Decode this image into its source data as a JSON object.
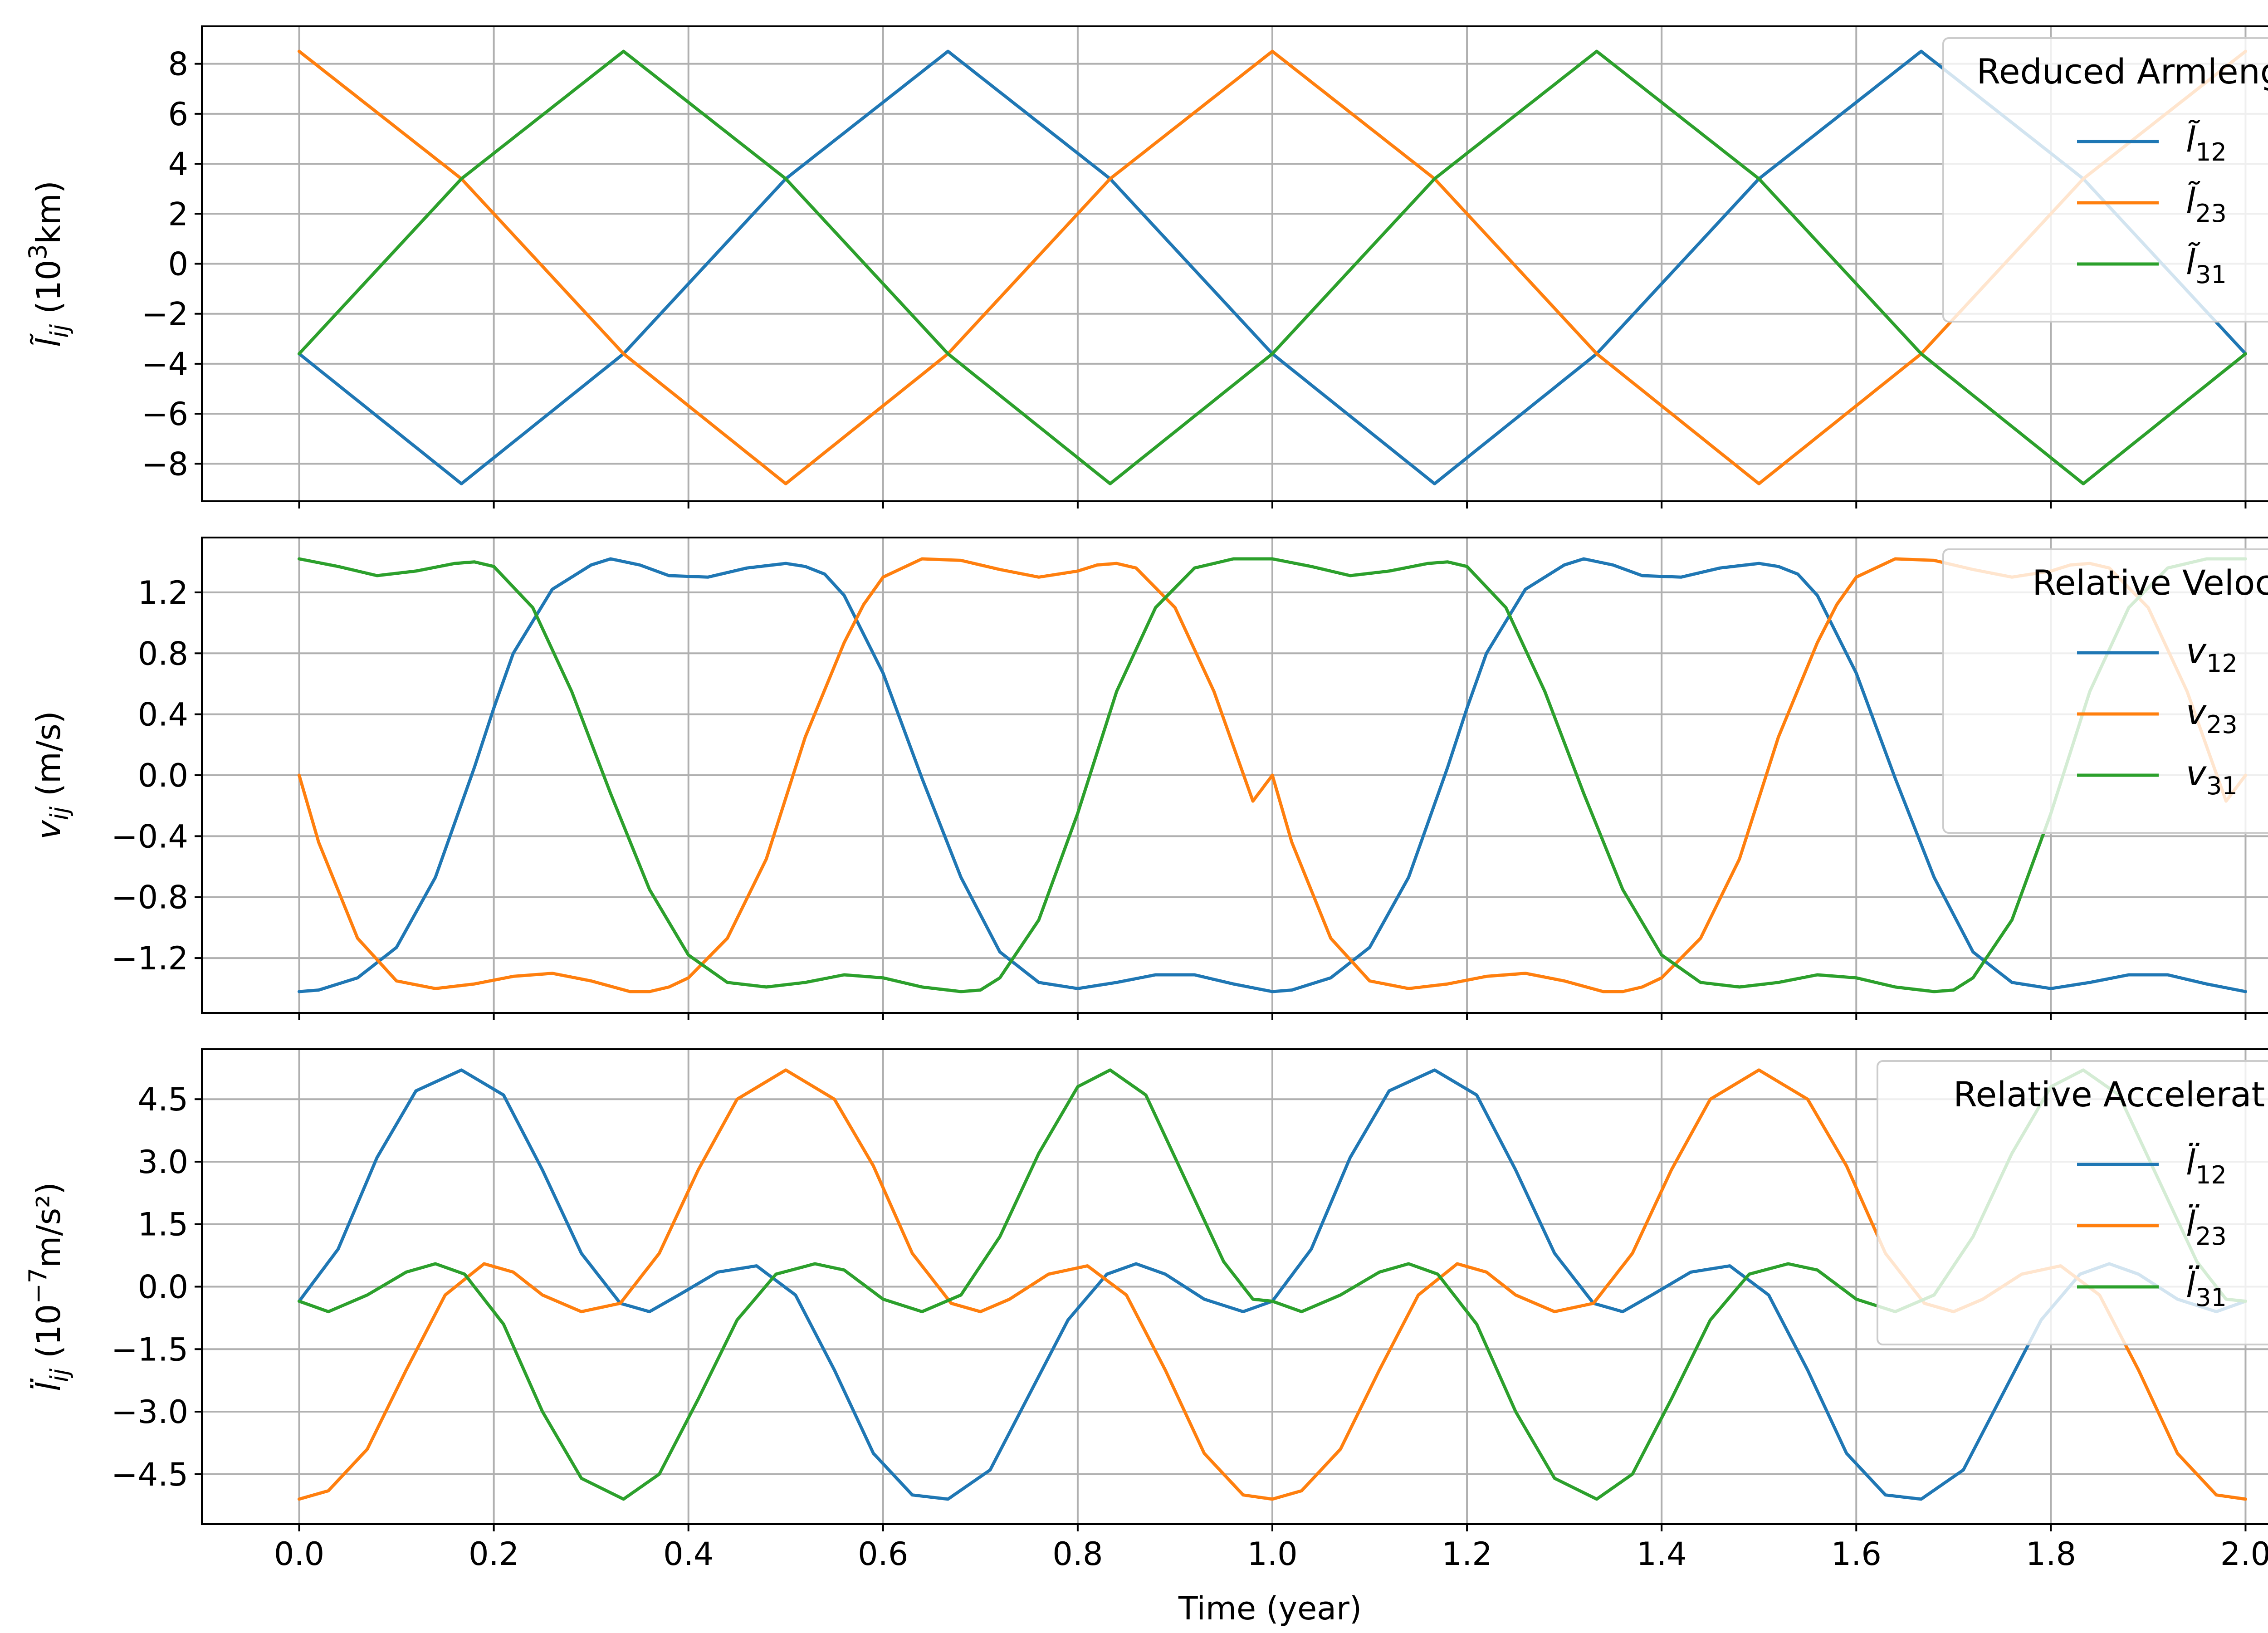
{
  "figure": {
    "xlabel": "Time (year)",
    "xticks": [
      0.0,
      0.2,
      0.4,
      0.6,
      0.8,
      1.0,
      1.2,
      1.4,
      1.6,
      1.8,
      2.0
    ],
    "xtick_labels": [
      "0.0",
      "0.2",
      "0.4",
      "0.6",
      "0.8",
      "1.0",
      "1.2",
      "1.4",
      "1.6",
      "1.8",
      "2.0"
    ]
  },
  "colors": {
    "c12": "#1f77b4",
    "c23": "#ff7f0e",
    "c31": "#2ca02c",
    "grid": "#b0b0b0"
  },
  "chart_data": [
    {
      "type": "line",
      "id": "armlength",
      "ylabel": {
        "base": "l̃",
        "sub": "ij",
        "rest": " (10",
        "sup": "3",
        "tail": "km)"
      },
      "legend_title": "Reduced Armlength",
      "legend_placement": "top-right",
      "grid": true,
      "xlim": [
        -0.1,
        2.1
      ],
      "ylim": [
        -9.5,
        9.5
      ],
      "yticks": [
        8,
        6,
        4,
        2,
        0,
        -2,
        -4,
        -6,
        -8
      ],
      "ytick_labels": [
        "8",
        "6",
        "4",
        "2",
        "0",
        "−2",
        "−4",
        "−6",
        "−8"
      ],
      "x_range": [
        0,
        2
      ],
      "series": [
        {
          "name": "l̃",
          "sub": "12",
          "color": "#1f77b4",
          "x": [
            0.0,
            0.1667,
            0.3333,
            0.5,
            0.6667,
            0.8333,
            1.0,
            1.1667,
            1.3333,
            1.5,
            1.6667,
            1.8333,
            2.0
          ],
          "values": [
            -3.6,
            -8.8,
            -3.6,
            3.4,
            8.5,
            3.4,
            -3.6,
            -8.8,
            -3.6,
            3.4,
            8.5,
            3.4,
            -3.6
          ]
        },
        {
          "name": "l̃",
          "sub": "23",
          "color": "#ff7f0e",
          "x": [
            0.0,
            0.1667,
            0.3333,
            0.5,
            0.6667,
            0.8333,
            1.0,
            1.1667,
            1.3333,
            1.5,
            1.6667,
            1.8333,
            2.0
          ],
          "values": [
            8.5,
            3.4,
            -3.6,
            -8.8,
            -3.6,
            3.4,
            8.5,
            3.4,
            -3.6,
            -8.8,
            -3.6,
            3.4,
            8.5
          ]
        },
        {
          "name": "l̃",
          "sub": "31",
          "color": "#2ca02c",
          "x": [
            0.0,
            0.1667,
            0.3333,
            0.5,
            0.6667,
            0.8333,
            1.0,
            1.1667,
            1.3333,
            1.5,
            1.6667,
            1.8333,
            2.0
          ],
          "values": [
            -3.6,
            3.4,
            8.5,
            3.4,
            -3.6,
            -8.8,
            -3.6,
            3.4,
            8.5,
            3.4,
            -3.6,
            -8.8,
            -3.6
          ]
        }
      ]
    },
    {
      "type": "line",
      "id": "velocity",
      "ylabel": {
        "base": "v",
        "sub": "ij",
        "rest": " (m/s)",
        "sup": "",
        "tail": ""
      },
      "legend_title": "Relative Velocity",
      "legend_placement": "top-right",
      "grid": true,
      "xlim": [
        -0.1,
        2.1
      ],
      "ylim": [
        -1.56,
        1.56
      ],
      "yticks": [
        1.2,
        0.8,
        0.4,
        0.0,
        -0.4,
        -0.8,
        -1.2
      ],
      "ytick_labels": [
        "1.2",
        "0.8",
        "0.4",
        "0.0",
        "−0.4",
        "−0.8",
        "−1.2"
      ],
      "series": [
        {
          "name": "v",
          "sub": "12",
          "color": "#1f77b4",
          "x": [
            0.0,
            0.02,
            0.06,
            0.1,
            0.14,
            0.18,
            0.2,
            0.22,
            0.26,
            0.3,
            0.32,
            0.35,
            0.38,
            0.42,
            0.46,
            0.5,
            0.52,
            0.54,
            0.56,
            0.6,
            0.64,
            0.68,
            0.72,
            0.76,
            0.8,
            0.84,
            0.88,
            0.92,
            0.96,
            1.0,
            1.02,
            1.06,
            1.1,
            1.14,
            1.18,
            1.2,
            1.22,
            1.26,
            1.3,
            1.32,
            1.35,
            1.38,
            1.42,
            1.46,
            1.5,
            1.52,
            1.54,
            1.56,
            1.6,
            1.64,
            1.68,
            1.72,
            1.76,
            1.8,
            1.84,
            1.88,
            1.92,
            1.96,
            2.0
          ],
          "values": [
            -1.42,
            -1.41,
            -1.33,
            -1.13,
            -0.67,
            0.05,
            0.44,
            0.8,
            1.22,
            1.38,
            1.42,
            1.38,
            1.31,
            1.3,
            1.36,
            1.39,
            1.37,
            1.32,
            1.18,
            0.67,
            -0.02,
            -0.67,
            -1.16,
            -1.36,
            -1.4,
            -1.36,
            -1.31,
            -1.31,
            -1.37,
            -1.42,
            -1.41,
            -1.33,
            -1.13,
            -0.67,
            0.05,
            0.44,
            0.8,
            1.22,
            1.38,
            1.42,
            1.38,
            1.31,
            1.3,
            1.36,
            1.39,
            1.37,
            1.32,
            1.18,
            0.67,
            -0.02,
            -0.67,
            -1.16,
            -1.36,
            -1.4,
            -1.36,
            -1.31,
            -1.31,
            -1.37,
            -1.42
          ]
        },
        {
          "name": "v",
          "sub": "23",
          "color": "#ff7f0e",
          "x": [
            0.0,
            0.02,
            0.06,
            0.1,
            0.14,
            0.18,
            0.22,
            0.26,
            0.3,
            0.34,
            0.36,
            0.38,
            0.4,
            0.44,
            0.48,
            0.52,
            0.56,
            0.58,
            0.6,
            0.64,
            0.68,
            0.72,
            0.76,
            0.8,
            0.82,
            0.84,
            0.86,
            0.9,
            0.94,
            0.98,
            1.0,
            1.02,
            1.06,
            1.1,
            1.14,
            1.18,
            1.22,
            1.26,
            1.3,
            1.34,
            1.36,
            1.38,
            1.4,
            1.44,
            1.48,
            1.52,
            1.56,
            1.58,
            1.6,
            1.64,
            1.68,
            1.72,
            1.76,
            1.8,
            1.82,
            1.84,
            1.86,
            1.9,
            1.94,
            1.98,
            2.0
          ],
          "values": [
            0.0,
            -0.44,
            -1.07,
            -1.35,
            -1.4,
            -1.37,
            -1.32,
            -1.3,
            -1.35,
            -1.42,
            -1.42,
            -1.39,
            -1.33,
            -1.07,
            -0.55,
            0.25,
            0.87,
            1.12,
            1.3,
            1.42,
            1.41,
            1.35,
            1.3,
            1.34,
            1.38,
            1.39,
            1.36,
            1.1,
            0.55,
            -0.17,
            0.0,
            -0.44,
            -1.07,
            -1.35,
            -1.4,
            -1.37,
            -1.32,
            -1.3,
            -1.35,
            -1.42,
            -1.42,
            -1.39,
            -1.33,
            -1.07,
            -0.55,
            0.25,
            0.87,
            1.12,
            1.3,
            1.42,
            1.41,
            1.35,
            1.3,
            1.34,
            1.38,
            1.39,
            1.36,
            1.1,
            0.55,
            -0.17,
            0.0
          ]
        },
        {
          "name": "v",
          "sub": "31",
          "color": "#2ca02c",
          "x": [
            0.0,
            0.04,
            0.08,
            0.12,
            0.16,
            0.18,
            0.2,
            0.24,
            0.28,
            0.32,
            0.36,
            0.4,
            0.44,
            0.48,
            0.52,
            0.56,
            0.6,
            0.64,
            0.68,
            0.7,
            0.72,
            0.76,
            0.8,
            0.84,
            0.88,
            0.92,
            0.96,
            1.0,
            1.04,
            1.08,
            1.12,
            1.16,
            1.18,
            1.2,
            1.24,
            1.28,
            1.32,
            1.36,
            1.4,
            1.44,
            1.48,
            1.52,
            1.56,
            1.6,
            1.64,
            1.68,
            1.7,
            1.72,
            1.76,
            1.8,
            1.84,
            1.88,
            1.92,
            1.96,
            2.0
          ],
          "values": [
            1.42,
            1.37,
            1.31,
            1.34,
            1.39,
            1.4,
            1.37,
            1.1,
            0.55,
            -0.12,
            -0.75,
            -1.18,
            -1.36,
            -1.39,
            -1.36,
            -1.31,
            -1.33,
            -1.39,
            -1.42,
            -1.41,
            -1.33,
            -0.95,
            -0.25,
            0.55,
            1.1,
            1.36,
            1.42,
            1.42,
            1.37,
            1.31,
            1.34,
            1.39,
            1.4,
            1.37,
            1.1,
            0.55,
            -0.12,
            -0.75,
            -1.18,
            -1.36,
            -1.39,
            -1.36,
            -1.31,
            -1.33,
            -1.39,
            -1.42,
            -1.41,
            -1.33,
            -0.95,
            -0.25,
            0.55,
            1.1,
            1.36,
            1.42,
            1.42
          ]
        }
      ]
    },
    {
      "type": "line",
      "id": "acceleration",
      "ylabel": {
        "base": "l̈",
        "sub": "ij",
        "rest": " (10",
        "sup": "−7",
        "tail": "m/s²)"
      },
      "legend_title": "Relative Acceleration",
      "legend_placement": "top-right",
      "grid": true,
      "xlim": [
        -0.1,
        2.1
      ],
      "ylim": [
        -5.7,
        5.7
      ],
      "yticks": [
        4.5,
        3.0,
        1.5,
        0.0,
        -1.5,
        -3.0,
        -4.5
      ],
      "ytick_labels": [
        "4.5",
        "3.0",
        "1.5",
        "0.0",
        "−1.5",
        "−3.0",
        "−4.5"
      ],
      "series": [
        {
          "name": "l̈",
          "sub": "12",
          "color": "#1f77b4",
          "x": [
            0.0,
            0.04,
            0.08,
            0.12,
            0.1667,
            0.21,
            0.25,
            0.29,
            0.33,
            0.36,
            0.39,
            0.43,
            0.47,
            0.51,
            0.55,
            0.59,
            0.63,
            0.6667,
            0.71,
            0.75,
            0.79,
            0.83,
            0.86,
            0.89,
            0.93,
            0.97,
            1.0,
            1.04,
            1.08,
            1.12,
            1.1667,
            1.21,
            1.25,
            1.29,
            1.33,
            1.36,
            1.39,
            1.43,
            1.47,
            1.51,
            1.55,
            1.59,
            1.63,
            1.6667,
            1.71,
            1.75,
            1.79,
            1.83,
            1.86,
            1.89,
            1.93,
            1.97,
            2.0
          ],
          "values": [
            -0.35,
            0.9,
            3.1,
            4.7,
            5.2,
            4.6,
            2.8,
            0.8,
            -0.4,
            -0.6,
            -0.2,
            0.35,
            0.5,
            -0.2,
            -2.0,
            -4.0,
            -5.0,
            -5.1,
            -4.4,
            -2.6,
            -0.8,
            0.3,
            0.55,
            0.3,
            -0.3,
            -0.6,
            -0.35,
            0.9,
            3.1,
            4.7,
            5.2,
            4.6,
            2.8,
            0.8,
            -0.4,
            -0.6,
            -0.2,
            0.35,
            0.5,
            -0.2,
            -2.0,
            -4.0,
            -5.0,
            -5.1,
            -4.4,
            -2.6,
            -0.8,
            0.3,
            0.55,
            0.3,
            -0.3,
            -0.6,
            -0.35
          ]
        },
        {
          "name": "l̈",
          "sub": "23",
          "color": "#ff7f0e",
          "x": [
            0.0,
            0.03,
            0.07,
            0.11,
            0.15,
            0.19,
            0.22,
            0.25,
            0.29,
            0.33,
            0.37,
            0.41,
            0.45,
            0.5,
            0.55,
            0.59,
            0.63,
            0.67,
            0.7,
            0.73,
            0.77,
            0.81,
            0.85,
            0.89,
            0.93,
            0.97,
            1.0,
            1.03,
            1.07,
            1.11,
            1.15,
            1.19,
            1.22,
            1.25,
            1.29,
            1.33,
            1.37,
            1.41,
            1.45,
            1.5,
            1.55,
            1.59,
            1.63,
            1.67,
            1.7,
            1.73,
            1.77,
            1.81,
            1.85,
            1.89,
            1.93,
            1.97,
            2.0
          ],
          "values": [
            -5.1,
            -4.9,
            -3.9,
            -2.0,
            -0.2,
            0.55,
            0.35,
            -0.2,
            -0.6,
            -0.4,
            0.8,
            2.8,
            4.5,
            5.2,
            4.5,
            2.9,
            0.8,
            -0.4,
            -0.6,
            -0.3,
            0.3,
            0.5,
            -0.2,
            -2.0,
            -4.0,
            -5.0,
            -5.1,
            -4.9,
            -3.9,
            -2.0,
            -0.2,
            0.55,
            0.35,
            -0.2,
            -0.6,
            -0.4,
            0.8,
            2.8,
            4.5,
            5.2,
            4.5,
            2.9,
            0.8,
            -0.4,
            -0.6,
            -0.3,
            0.3,
            0.5,
            -0.2,
            -2.0,
            -4.0,
            -5.0,
            -5.1
          ]
        },
        {
          "name": "l̈",
          "sub": "31",
          "color": "#2ca02c",
          "x": [
            0.0,
            0.03,
            0.07,
            0.11,
            0.14,
            0.17,
            0.21,
            0.25,
            0.29,
            0.3333,
            0.37,
            0.41,
            0.45,
            0.49,
            0.53,
            0.56,
            0.6,
            0.64,
            0.68,
            0.72,
            0.76,
            0.8,
            0.8333,
            0.87,
            0.91,
            0.95,
            0.98,
            1.0,
            1.03,
            1.07,
            1.11,
            1.14,
            1.17,
            1.21,
            1.25,
            1.29,
            1.3333,
            1.37,
            1.41,
            1.45,
            1.49,
            1.53,
            1.56,
            1.6,
            1.64,
            1.68,
            1.72,
            1.76,
            1.8,
            1.8333,
            1.87,
            1.91,
            1.95,
            1.98,
            2.0
          ],
          "values": [
            -0.35,
            -0.6,
            -0.2,
            0.35,
            0.55,
            0.3,
            -0.9,
            -3.0,
            -4.6,
            -5.1,
            -4.5,
            -2.7,
            -0.8,
            0.3,
            0.55,
            0.4,
            -0.3,
            -0.6,
            -0.2,
            1.2,
            3.2,
            4.8,
            5.2,
            4.6,
            2.6,
            0.6,
            -0.3,
            -0.35,
            -0.6,
            -0.2,
            0.35,
            0.55,
            0.3,
            -0.9,
            -3.0,
            -4.6,
            -5.1,
            -4.5,
            -2.7,
            -0.8,
            0.3,
            0.55,
            0.4,
            -0.3,
            -0.6,
            -0.2,
            1.2,
            3.2,
            4.8,
            5.2,
            4.6,
            2.6,
            0.6,
            -0.3,
            -0.35
          ]
        }
      ]
    }
  ]
}
